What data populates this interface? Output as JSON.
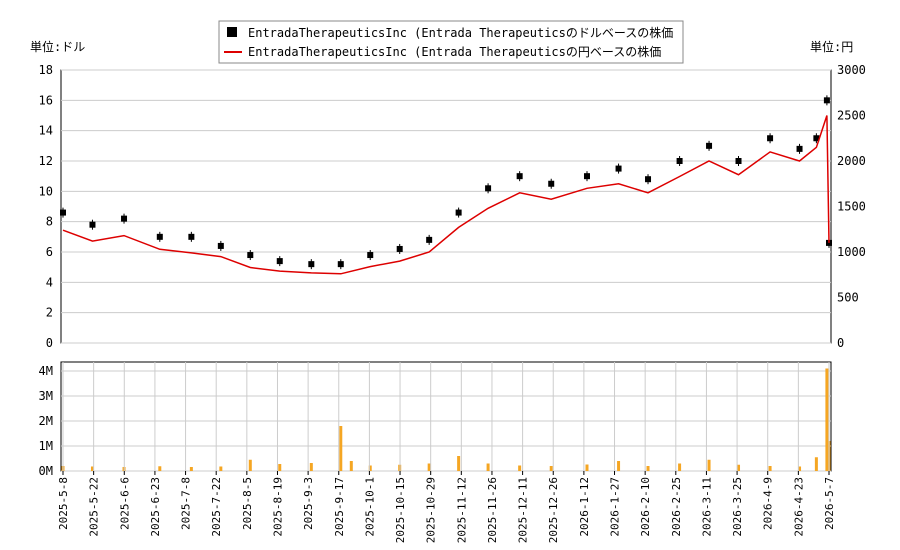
{
  "legend": {
    "items": [
      {
        "label": "EntradaTherapeuticsInc (Entrada Therapeuticsのドルベースの株価",
        "color": "#000000",
        "marker": "square"
      },
      {
        "label": "EntradaTherapeuticsInc (Entrada Therapeuticsの円ベースの株価",
        "color": "#dd0000",
        "marker": "line"
      }
    ]
  },
  "axis_units": {
    "left": "単位:ドル",
    "right": "単位:円"
  },
  "chart_data": [
    {
      "type": "line",
      "title": "",
      "y_left": {
        "ticks": [
          "0",
          "2",
          "4",
          "6",
          "8",
          "10",
          "12",
          "14",
          "16",
          "18"
        ],
        "range": [
          0,
          18
        ]
      },
      "y_right": {
        "ticks": [
          "0",
          "500",
          "1000",
          "1500",
          "2000",
          "2500",
          "3000"
        ],
        "range": [
          0,
          3000
        ]
      },
      "grid": true,
      "legend_position": "top-center",
      "series": [
        {
          "name": "EntradaTherapeuticsInc (Entrada Therapeuticsのドルベースの株価",
          "axis": "left",
          "color": "#000000",
          "style": "candlestick",
          "x": [
            "2025-05-08",
            "2025-05-22",
            "2025-06-06",
            "2025-06-23",
            "2025-07-08",
            "2025-07-22",
            "2025-08-05",
            "2025-08-19",
            "2025-09-03",
            "2025-09-17",
            "2025-10-01",
            "2025-10-15",
            "2025-10-29",
            "2025-11-12",
            "2025-11-26",
            "2025-12-11",
            "2025-12-26",
            "2026-01-12",
            "2026-01-27",
            "2026-02-10",
            "2026-02-25",
            "2026-03-11",
            "2026-03-25",
            "2026-04-09",
            "2026-04-23",
            "2026-05-01",
            "2026-05-06",
            "2026-05-07"
          ],
          "values": [
            8.6,
            7.8,
            8.2,
            7.0,
            7.0,
            6.4,
            5.8,
            5.4,
            5.2,
            5.2,
            5.8,
            6.2,
            6.8,
            8.6,
            10.2,
            11.0,
            10.5,
            11.0,
            11.5,
            10.8,
            12.0,
            13.0,
            12.0,
            13.5,
            12.8,
            13.5,
            16.0,
            6.6
          ]
        },
        {
          "name": "EntradaTherapeuticsInc (Entrada Therapeuticsの円ベースの株価",
          "axis": "right",
          "color": "#dd0000",
          "style": "line",
          "x": [
            "2025-05-08",
            "2025-05-22",
            "2025-06-06",
            "2025-06-23",
            "2025-07-08",
            "2025-07-22",
            "2025-08-05",
            "2025-08-19",
            "2025-09-03",
            "2025-09-17",
            "2025-10-01",
            "2025-10-15",
            "2025-10-29",
            "2025-11-12",
            "2025-11-26",
            "2025-12-11",
            "2025-12-26",
            "2026-01-12",
            "2026-01-27",
            "2026-02-10",
            "2026-02-25",
            "2026-03-11",
            "2026-03-25",
            "2026-04-09",
            "2026-04-23",
            "2026-05-01",
            "2026-05-06",
            "2026-05-07"
          ],
          "values": [
            1240,
            1120,
            1180,
            1030,
            990,
            950,
            830,
            790,
            770,
            760,
            840,
            900,
            1000,
            1270,
            1480,
            1650,
            1580,
            1700,
            1750,
            1650,
            1830,
            2000,
            1850,
            2100,
            2000,
            2150,
            2500,
            1100
          ]
        }
      ]
    },
    {
      "type": "bar",
      "title": "",
      "y": {
        "ticks": [
          "0M",
          "1M",
          "2M",
          "3M",
          "4M"
        ],
        "range": [
          0,
          4000000
        ]
      },
      "x_ticks": [
        "2025-5-8",
        "2025-5-22",
        "2025-6-6",
        "2025-6-23",
        "2025-7-8",
        "2025-7-22",
        "2025-8-5",
        "2025-8-19",
        "2025-9-3",
        "2025-9-17",
        "2025-10-1",
        "2025-10-15",
        "2025-10-29",
        "2025-11-12",
        "2025-11-26",
        "2025-12-11",
        "2025-12-26",
        "2026-1-12",
        "2026-1-27",
        "2026-2-10",
        "2026-2-25",
        "2026-3-11",
        "2026-3-25",
        "2026-4-9",
        "2026-4-23",
        "2026-5-7"
      ],
      "grid": true,
      "series": [
        {
          "color": "#f5a623",
          "x": [
            "2025-05-08",
            "2025-05-22",
            "2025-06-06",
            "2025-06-23",
            "2025-07-08",
            "2025-07-22",
            "2025-08-05",
            "2025-08-19",
            "2025-09-03",
            "2025-09-17",
            "2025-09-22",
            "2025-10-01",
            "2025-10-15",
            "2025-10-29",
            "2025-11-12",
            "2025-11-26",
            "2025-12-11",
            "2025-12-26",
            "2026-01-12",
            "2026-01-27",
            "2026-02-10",
            "2026-02-25",
            "2026-03-11",
            "2026-03-25",
            "2026-04-09",
            "2026-04-23",
            "2026-05-01",
            "2026-05-06",
            "2026-05-07"
          ],
          "values": [
            200000,
            180000,
            160000,
            190000,
            160000,
            180000,
            450000,
            280000,
            320000,
            1800000,
            400000,
            220000,
            250000,
            300000,
            600000,
            300000,
            220000,
            200000,
            260000,
            400000,
            200000,
            300000,
            450000,
            250000,
            200000,
            180000,
            550000,
            4100000,
            1200000
          ]
        }
      ]
    }
  ]
}
